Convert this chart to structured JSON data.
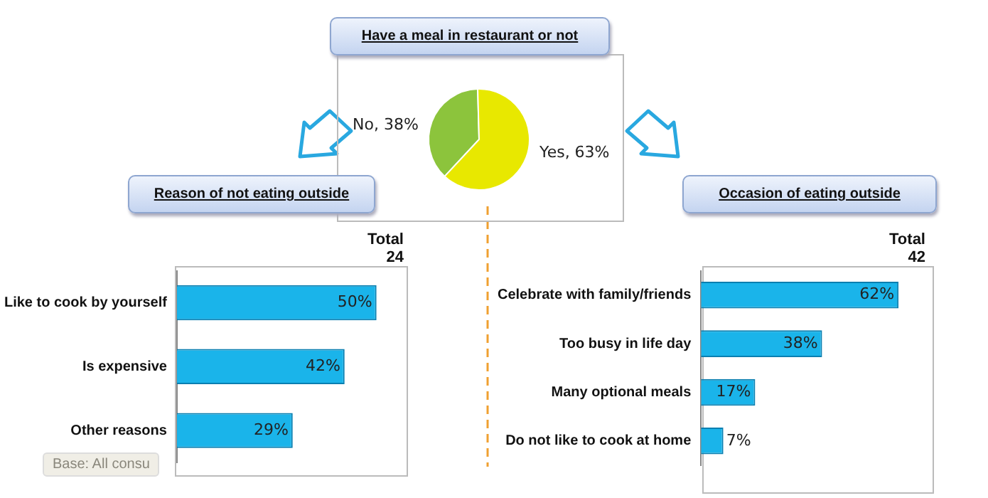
{
  "chart_data": [
    {
      "type": "pie",
      "title": "Have a meal in restaurant or not",
      "categories": [
        "No",
        "Yes"
      ],
      "values": [
        38,
        63
      ],
      "colors": [
        "#8cc43c",
        "#e8e800"
      ],
      "value_labels": [
        "38%",
        "63%"
      ],
      "legend": false
    },
    {
      "type": "bar",
      "orientation": "horizontal",
      "title": "Reason of not eating outside",
      "subtitle": "Total\n24",
      "categories": [
        "Like to cook by yourself",
        "Is expensive",
        "Other reasons"
      ],
      "values": [
        50,
        42,
        29
      ],
      "color": "#1ab4ea",
      "value_labels": [
        "50%",
        "42%",
        "29%"
      ],
      "grid": false,
      "legend": false,
      "tick_labels": "y",
      "annotations": [
        "Base: All consu"
      ]
    },
    {
      "type": "bar",
      "orientation": "horizontal",
      "title": "Occasion of eating outside",
      "subtitle": "Total\n42",
      "categories": [
        "Celebrate with family/friends",
        "Too busy in life day",
        "Many optional meals",
        "Do not like to cook at home"
      ],
      "values": [
        62,
        38,
        17,
        7
      ],
      "color": "#1ab4ea",
      "value_labels": [
        "62%",
        "38%",
        "17%",
        "7%"
      ],
      "grid": false,
      "legend": false,
      "tick_labels": "y"
    }
  ]
}
